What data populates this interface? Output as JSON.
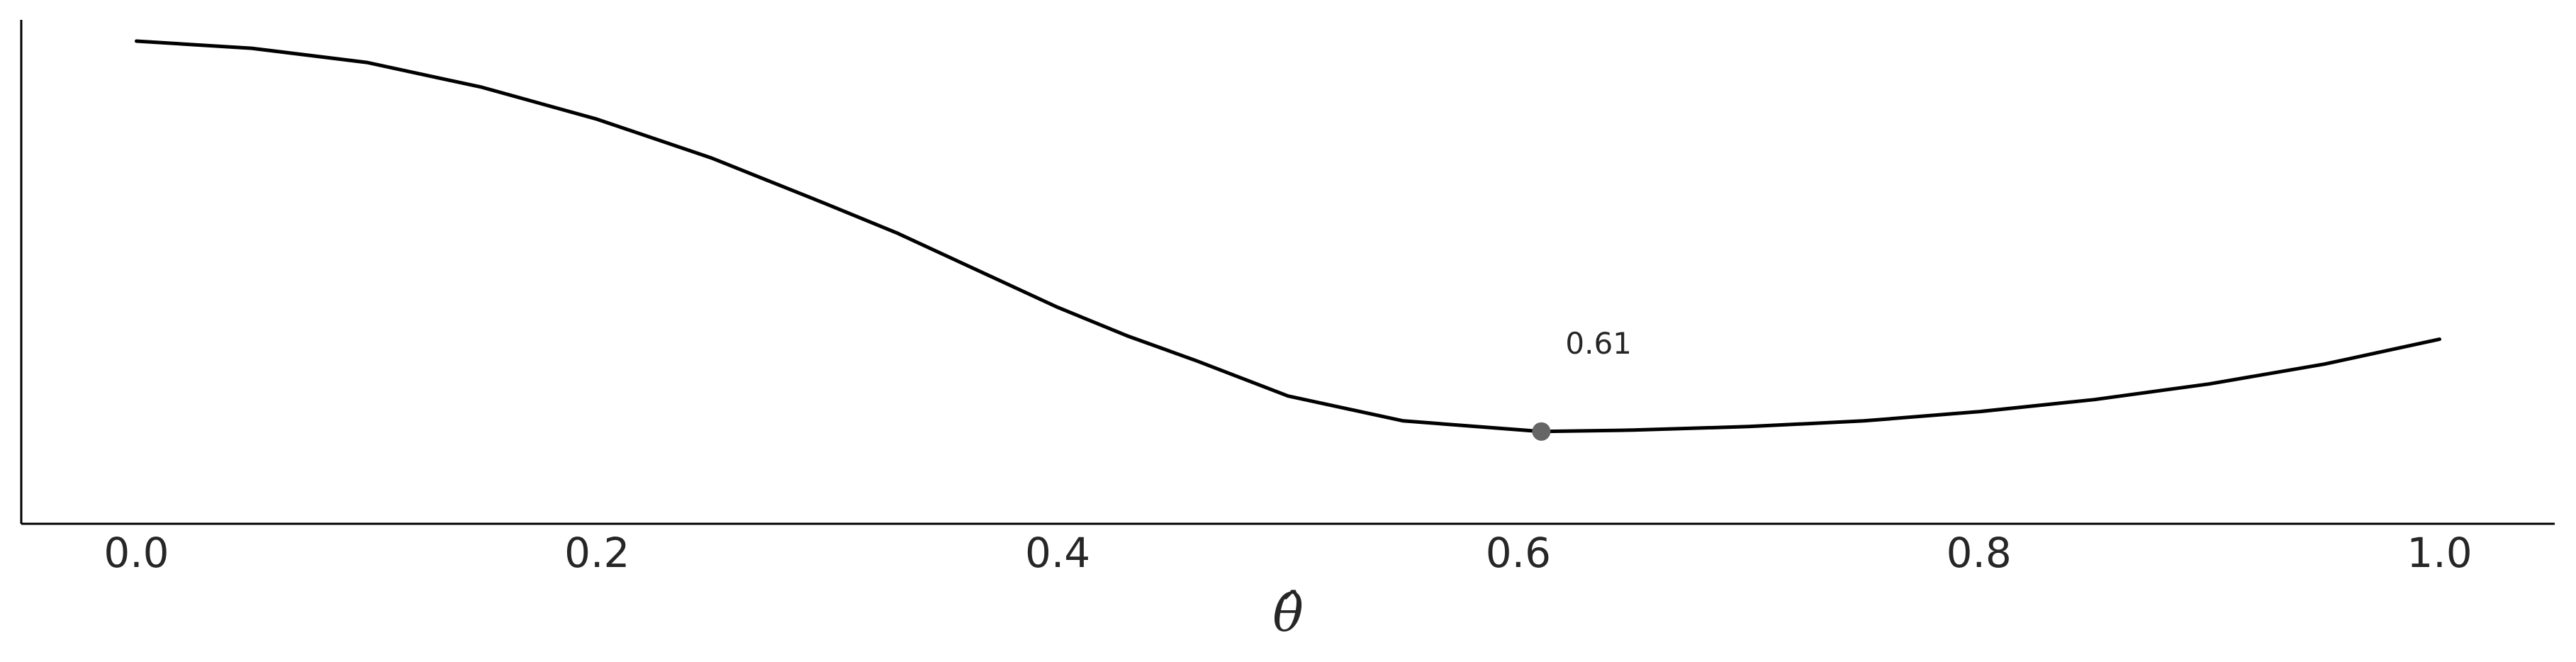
{
  "chart_data": {
    "type": "line",
    "title": "",
    "xlabel": "θ̂",
    "ylabel": "",
    "xlim": [
      -0.05,
      1.05
    ],
    "ylim": [
      0.32,
      1.03
    ],
    "xticks": [
      0.0,
      0.2,
      0.4,
      0.6,
      0.8,
      1.0
    ],
    "xtick_labels": [
      "0.0",
      "0.2",
      "0.4",
      "0.6",
      "0.8",
      "1.0"
    ],
    "grid": false,
    "line_color": "#000000",
    "marker_color": "#666666",
    "series": [
      {
        "x": [
          0.0,
          0.05,
          0.1,
          0.15,
          0.2,
          0.25,
          0.3,
          0.33,
          0.36,
          0.4,
          0.43,
          0.46,
          0.48,
          0.5,
          0.55,
          0.61,
          0.65,
          0.7,
          0.75,
          0.8,
          0.85,
          0.9,
          0.95,
          1.0
        ],
        "y": [
          1.0,
          0.99,
          0.97,
          0.935,
          0.89,
          0.835,
          0.77,
          0.73,
          0.685,
          0.625,
          0.585,
          0.55,
          0.525,
          0.5,
          0.465,
          0.45,
          0.452,
          0.457,
          0.465,
          0.478,
          0.495,
          0.517,
          0.545,
          0.58
        ]
      }
    ],
    "minimum": {
      "x": 0.61,
      "y": 0.45,
      "label": "0.61"
    }
  }
}
